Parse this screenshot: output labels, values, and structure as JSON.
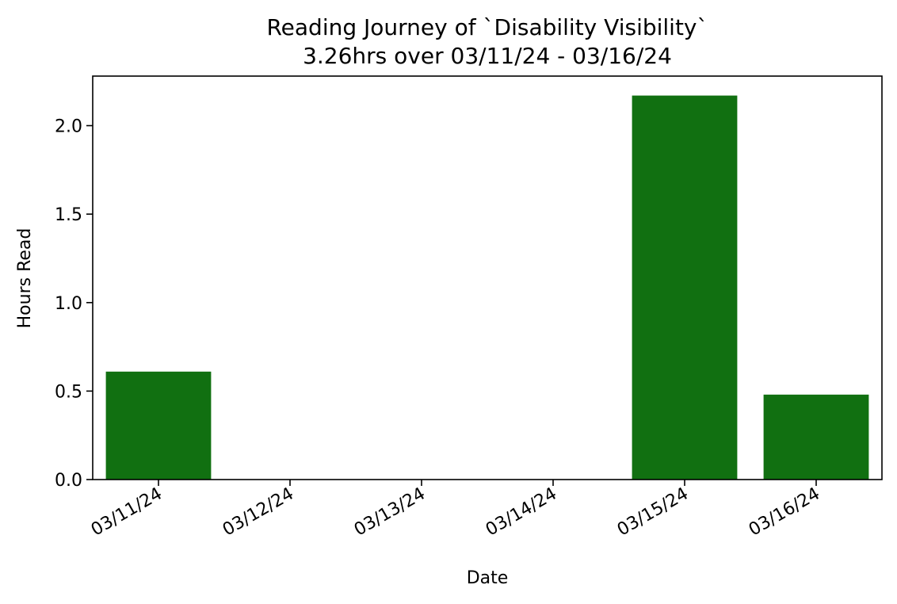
{
  "chart_data": {
    "type": "bar",
    "title": "Reading Journey of `Disability Visibility`",
    "subtitle": "3.26hrs over 03/11/24 - 03/16/24",
    "xlabel": "Date",
    "ylabel": "Hours Read",
    "categories": [
      "03/11/24",
      "03/12/24",
      "03/13/24",
      "03/14/24",
      "03/15/24",
      "03/16/24"
    ],
    "values": [
      0.61,
      0.0,
      0.0,
      0.0,
      2.17,
      0.48
    ],
    "ylim": [
      0,
      2.28
    ],
    "yticks": [
      0.0,
      0.5,
      1.0,
      1.5,
      2.0
    ],
    "ytick_labels": [
      "0.0",
      "0.5",
      "1.0",
      "1.5",
      "2.0"
    ],
    "bar_color": "#117011",
    "grid": false,
    "legend": "none"
  }
}
